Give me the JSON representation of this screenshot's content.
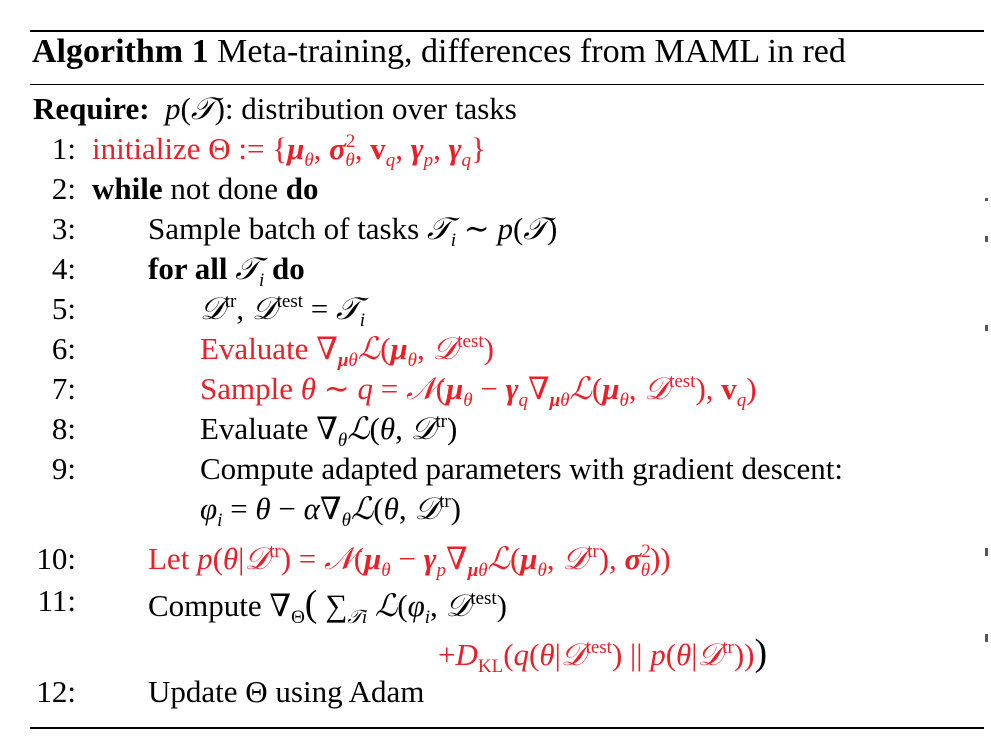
{
  "header": {
    "title_bold": "Algorithm 1",
    "title_rest": "Meta-training, differences from MAML in red"
  },
  "require": {
    "keyword": "Require:",
    "text": "p(𝒯): distribution over tasks"
  },
  "lines": [
    {
      "number": "1:",
      "text": "initialize Θ := {μθ, σ²θ, vq, γp, γq}",
      "highlight": true
    },
    {
      "number": "2:",
      "text": "while not done do",
      "highlight": false
    },
    {
      "number": "3:",
      "text": "Sample batch of tasks 𝒯i ∼ p(𝒯)",
      "highlight": false
    },
    {
      "number": "4:",
      "text": "for all 𝒯i do",
      "highlight": false
    },
    {
      "number": "5:",
      "text": "𝒟tr, 𝒟test = 𝒯i",
      "highlight": false
    },
    {
      "number": "6:",
      "text": "Evaluate ∇μθ ℒ(μθ, 𝒟test)",
      "highlight": true
    },
    {
      "number": "7:",
      "text": "Sample θ ∼ q = 𝒩(μθ − γq∇μθ ℒ(μθ, 𝒟test), vq)",
      "highlight": true
    },
    {
      "number": "8:",
      "text": "Evaluate ∇θℒ(θ, 𝒟tr)",
      "highlight": false
    },
    {
      "number": "9:",
      "text": "Compute adapted parameters with gradient descent: φi = θ − α∇θℒ(θ, 𝒟tr)",
      "highlight": false
    },
    {
      "number": "10:",
      "text": "Let p(θ|𝒟tr) = 𝒩(μθ − γp∇μθ ℒ(μθ, 𝒟tr), σ²θ))",
      "highlight": true
    },
    {
      "number": "11:",
      "text": "Compute ∇Θ( Σ𝒯i ℒ(φi, 𝒟test) + DKL(q(θ|𝒟test) || p(θ|𝒟tr)))",
      "highlight": false
    },
    {
      "number": "12:",
      "text": "Update Θ using Adam",
      "highlight": false
    }
  ],
  "colors": {
    "highlight": "#e8202a",
    "text": "#000000"
  }
}
